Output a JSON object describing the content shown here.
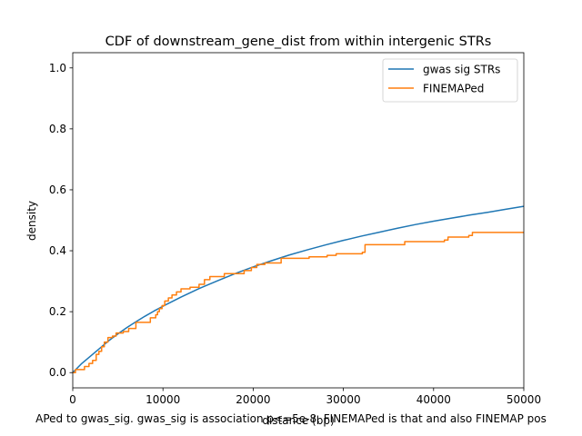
{
  "chart_data": {
    "type": "line",
    "title": "CDF of downstream_gene_dist from within intergenic STRs",
    "xlabel": "distance (bp)",
    "ylabel": "density",
    "caption": "APed to gwas_sig. gwas_sig is association p<=5e-8. FINEMAPed is that and also FINEMAP pos",
    "xlim": [
      0,
      50000
    ],
    "ylim": [
      -0.05,
      1.05
    ],
    "x_ticks": [
      0,
      10000,
      20000,
      30000,
      40000,
      50000
    ],
    "x_tick_labels": [
      "0",
      "10000",
      "20000",
      "30000",
      "40000",
      "50000"
    ],
    "y_ticks": [
      0.0,
      0.2,
      0.4,
      0.6,
      0.8,
      1.0
    ],
    "y_tick_labels": [
      "0.0",
      "0.2",
      "0.4",
      "0.6",
      "0.8",
      "1.0"
    ],
    "grid": false,
    "legend_position": "upper right",
    "series": [
      {
        "name": "gwas sig STRs",
        "color": "#1f77b4",
        "step": false,
        "x": [
          0,
          1000,
          2000,
          3000,
          4000,
          5000,
          6000,
          7000,
          8000,
          9000,
          10000,
          12000,
          14000,
          16000,
          18000,
          20000,
          22000,
          24000,
          26000,
          28000,
          30000,
          32000,
          34000,
          36000,
          38000,
          40000,
          42000,
          44000,
          46000,
          48000,
          50000
        ],
        "y": [
          0.0,
          0.03,
          0.055,
          0.08,
          0.105,
          0.127,
          0.148,
          0.167,
          0.185,
          0.202,
          0.218,
          0.248,
          0.276,
          0.301,
          0.325,
          0.347,
          0.367,
          0.386,
          0.403,
          0.419,
          0.434,
          0.448,
          0.461,
          0.474,
          0.486,
          0.497,
          0.507,
          0.517,
          0.526,
          0.536,
          0.546
        ]
      },
      {
        "name": "FINEMAPed",
        "color": "#ff7f0e",
        "step": true,
        "x": [
          0,
          300,
          1300,
          1800,
          2200,
          2600,
          2900,
          3200,
          3500,
          3900,
          4400,
          4800,
          5600,
          6200,
          7000,
          7500,
          8600,
          9200,
          9400,
          9600,
          9900,
          10200,
          10600,
          11000,
          11500,
          12000,
          13000,
          14000,
          14600,
          15200,
          16800,
          19000,
          19800,
          20400,
          21300,
          23100,
          26200,
          28200,
          29200,
          32100,
          32400,
          36800,
          41200,
          41600,
          43900,
          44300,
          50000
        ],
        "y": [
          0.0,
          0.01,
          0.02,
          0.03,
          0.04,
          0.06,
          0.07,
          0.085,
          0.1,
          0.115,
          0.12,
          0.13,
          0.135,
          0.145,
          0.165,
          0.165,
          0.18,
          0.19,
          0.2,
          0.21,
          0.22,
          0.235,
          0.245,
          0.255,
          0.265,
          0.275,
          0.28,
          0.29,
          0.305,
          0.315,
          0.325,
          0.335,
          0.345,
          0.355,
          0.36,
          0.375,
          0.38,
          0.385,
          0.39,
          0.395,
          0.42,
          0.43,
          0.435,
          0.445,
          0.45,
          0.46,
          0.46
        ]
      }
    ]
  }
}
